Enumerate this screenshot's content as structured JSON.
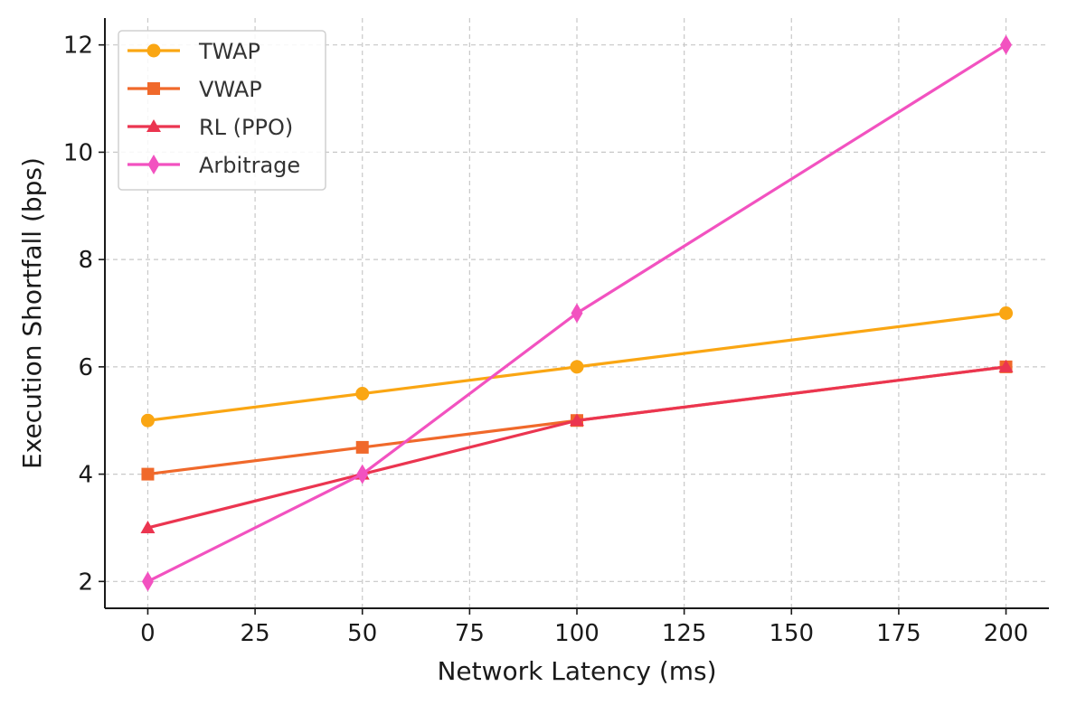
{
  "chart_data": {
    "type": "line",
    "title": "",
    "xlabel": "Network Latency (ms)",
    "ylabel": "Execution Shortfall (bps)",
    "x": [
      0,
      50,
      100,
      200
    ],
    "xlim": [
      -10,
      210
    ],
    "ylim": [
      1.5,
      12.5
    ],
    "x_ticks": [
      0,
      25,
      50,
      75,
      100,
      125,
      150,
      175,
      200
    ],
    "y_ticks": [
      2,
      4,
      6,
      8,
      10,
      12
    ],
    "grid": true,
    "legend_position": "top-left",
    "series": [
      {
        "name": "TWAP",
        "values": [
          5,
          5.5,
          6,
          7
        ],
        "color": "#FAA613",
        "marker": "circle"
      },
      {
        "name": "VWAP",
        "values": [
          4,
          4.5,
          5,
          6
        ],
        "color": "#F0692B",
        "marker": "square"
      },
      {
        "name": "RL (PPO)",
        "values": [
          3,
          4,
          5,
          6
        ],
        "color": "#EB3550",
        "marker": "triangle"
      },
      {
        "name": "Arbitrage",
        "values": [
          2,
          4,
          7,
          12
        ],
        "color": "#F252C0",
        "marker": "diamond"
      }
    ]
  }
}
